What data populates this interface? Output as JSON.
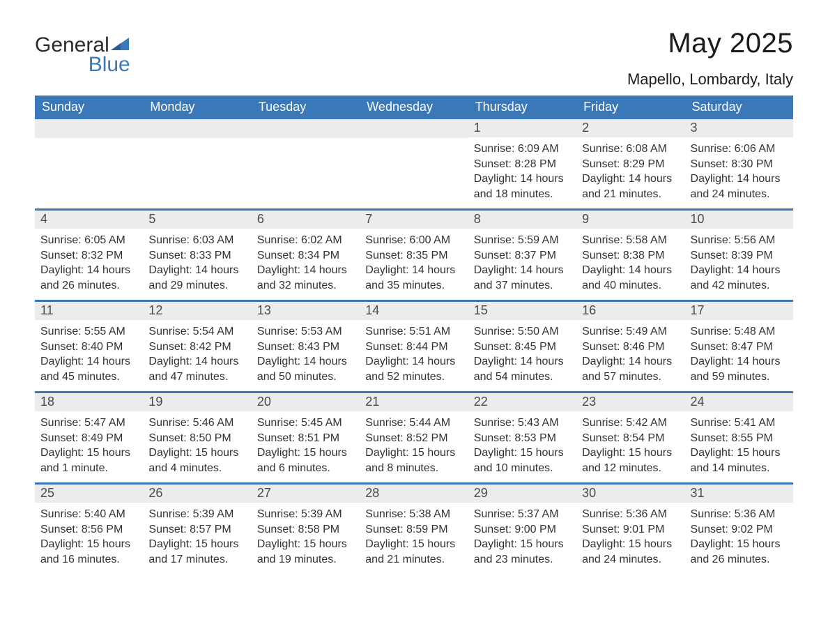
{
  "brand": {
    "name_part1": "General",
    "name_part2": "Blue",
    "icon_name": "triangle-flag-icon",
    "color_primary": "#3b78b8",
    "color_text": "#2b2b2b"
  },
  "title": {
    "month": "May 2025",
    "location": "Mapello, Lombardy, Italy",
    "month_fontsize": 40,
    "location_fontsize": 22
  },
  "calendar": {
    "header_bg": "#3b78b8",
    "header_text_color": "#ffffff",
    "daynum_bg": "#ececec",
    "week_divider_color": "#3b78b8",
    "text_color": "#333333",
    "fontsize_body": 16,
    "fontsize_daynum": 18,
    "columns": [
      "Sunday",
      "Monday",
      "Tuesday",
      "Wednesday",
      "Thursday",
      "Friday",
      "Saturday"
    ],
    "weeks": [
      [
        {
          "day": "",
          "lines": []
        },
        {
          "day": "",
          "lines": []
        },
        {
          "day": "",
          "lines": []
        },
        {
          "day": "",
          "lines": []
        },
        {
          "day": "1",
          "lines": [
            "Sunrise: 6:09 AM",
            "Sunset: 8:28 PM",
            "Daylight: 14 hours",
            "and 18 minutes."
          ]
        },
        {
          "day": "2",
          "lines": [
            "Sunrise: 6:08 AM",
            "Sunset: 8:29 PM",
            "Daylight: 14 hours",
            "and 21 minutes."
          ]
        },
        {
          "day": "3",
          "lines": [
            "Sunrise: 6:06 AM",
            "Sunset: 8:30 PM",
            "Daylight: 14 hours",
            "and 24 minutes."
          ]
        }
      ],
      [
        {
          "day": "4",
          "lines": [
            "Sunrise: 6:05 AM",
            "Sunset: 8:32 PM",
            "Daylight: 14 hours",
            "and 26 minutes."
          ]
        },
        {
          "day": "5",
          "lines": [
            "Sunrise: 6:03 AM",
            "Sunset: 8:33 PM",
            "Daylight: 14 hours",
            "and 29 minutes."
          ]
        },
        {
          "day": "6",
          "lines": [
            "Sunrise: 6:02 AM",
            "Sunset: 8:34 PM",
            "Daylight: 14 hours",
            "and 32 minutes."
          ]
        },
        {
          "day": "7",
          "lines": [
            "Sunrise: 6:00 AM",
            "Sunset: 8:35 PM",
            "Daylight: 14 hours",
            "and 35 minutes."
          ]
        },
        {
          "day": "8",
          "lines": [
            "Sunrise: 5:59 AM",
            "Sunset: 8:37 PM",
            "Daylight: 14 hours",
            "and 37 minutes."
          ]
        },
        {
          "day": "9",
          "lines": [
            "Sunrise: 5:58 AM",
            "Sunset: 8:38 PM",
            "Daylight: 14 hours",
            "and 40 minutes."
          ]
        },
        {
          "day": "10",
          "lines": [
            "Sunrise: 5:56 AM",
            "Sunset: 8:39 PM",
            "Daylight: 14 hours",
            "and 42 minutes."
          ]
        }
      ],
      [
        {
          "day": "11",
          "lines": [
            "Sunrise: 5:55 AM",
            "Sunset: 8:40 PM",
            "Daylight: 14 hours",
            "and 45 minutes."
          ]
        },
        {
          "day": "12",
          "lines": [
            "Sunrise: 5:54 AM",
            "Sunset: 8:42 PM",
            "Daylight: 14 hours",
            "and 47 minutes."
          ]
        },
        {
          "day": "13",
          "lines": [
            "Sunrise: 5:53 AM",
            "Sunset: 8:43 PM",
            "Daylight: 14 hours",
            "and 50 minutes."
          ]
        },
        {
          "day": "14",
          "lines": [
            "Sunrise: 5:51 AM",
            "Sunset: 8:44 PM",
            "Daylight: 14 hours",
            "and 52 minutes."
          ]
        },
        {
          "day": "15",
          "lines": [
            "Sunrise: 5:50 AM",
            "Sunset: 8:45 PM",
            "Daylight: 14 hours",
            "and 54 minutes."
          ]
        },
        {
          "day": "16",
          "lines": [
            "Sunrise: 5:49 AM",
            "Sunset: 8:46 PM",
            "Daylight: 14 hours",
            "and 57 minutes."
          ]
        },
        {
          "day": "17",
          "lines": [
            "Sunrise: 5:48 AM",
            "Sunset: 8:47 PM",
            "Daylight: 14 hours",
            "and 59 minutes."
          ]
        }
      ],
      [
        {
          "day": "18",
          "lines": [
            "Sunrise: 5:47 AM",
            "Sunset: 8:49 PM",
            "Daylight: 15 hours",
            "and 1 minute."
          ]
        },
        {
          "day": "19",
          "lines": [
            "Sunrise: 5:46 AM",
            "Sunset: 8:50 PM",
            "Daylight: 15 hours",
            "and 4 minutes."
          ]
        },
        {
          "day": "20",
          "lines": [
            "Sunrise: 5:45 AM",
            "Sunset: 8:51 PM",
            "Daylight: 15 hours",
            "and 6 minutes."
          ]
        },
        {
          "day": "21",
          "lines": [
            "Sunrise: 5:44 AM",
            "Sunset: 8:52 PM",
            "Daylight: 15 hours",
            "and 8 minutes."
          ]
        },
        {
          "day": "22",
          "lines": [
            "Sunrise: 5:43 AM",
            "Sunset: 8:53 PM",
            "Daylight: 15 hours",
            "and 10 minutes."
          ]
        },
        {
          "day": "23",
          "lines": [
            "Sunrise: 5:42 AM",
            "Sunset: 8:54 PM",
            "Daylight: 15 hours",
            "and 12 minutes."
          ]
        },
        {
          "day": "24",
          "lines": [
            "Sunrise: 5:41 AM",
            "Sunset: 8:55 PM",
            "Daylight: 15 hours",
            "and 14 minutes."
          ]
        }
      ],
      [
        {
          "day": "25",
          "lines": [
            "Sunrise: 5:40 AM",
            "Sunset: 8:56 PM",
            "Daylight: 15 hours",
            "and 16 minutes."
          ]
        },
        {
          "day": "26",
          "lines": [
            "Sunrise: 5:39 AM",
            "Sunset: 8:57 PM",
            "Daylight: 15 hours",
            "and 17 minutes."
          ]
        },
        {
          "day": "27",
          "lines": [
            "Sunrise: 5:39 AM",
            "Sunset: 8:58 PM",
            "Daylight: 15 hours",
            "and 19 minutes."
          ]
        },
        {
          "day": "28",
          "lines": [
            "Sunrise: 5:38 AM",
            "Sunset: 8:59 PM",
            "Daylight: 15 hours",
            "and 21 minutes."
          ]
        },
        {
          "day": "29",
          "lines": [
            "Sunrise: 5:37 AM",
            "Sunset: 9:00 PM",
            "Daylight: 15 hours",
            "and 23 minutes."
          ]
        },
        {
          "day": "30",
          "lines": [
            "Sunrise: 5:36 AM",
            "Sunset: 9:01 PM",
            "Daylight: 15 hours",
            "and 24 minutes."
          ]
        },
        {
          "day": "31",
          "lines": [
            "Sunrise: 5:36 AM",
            "Sunset: 9:02 PM",
            "Daylight: 15 hours",
            "and 26 minutes."
          ]
        }
      ]
    ]
  }
}
